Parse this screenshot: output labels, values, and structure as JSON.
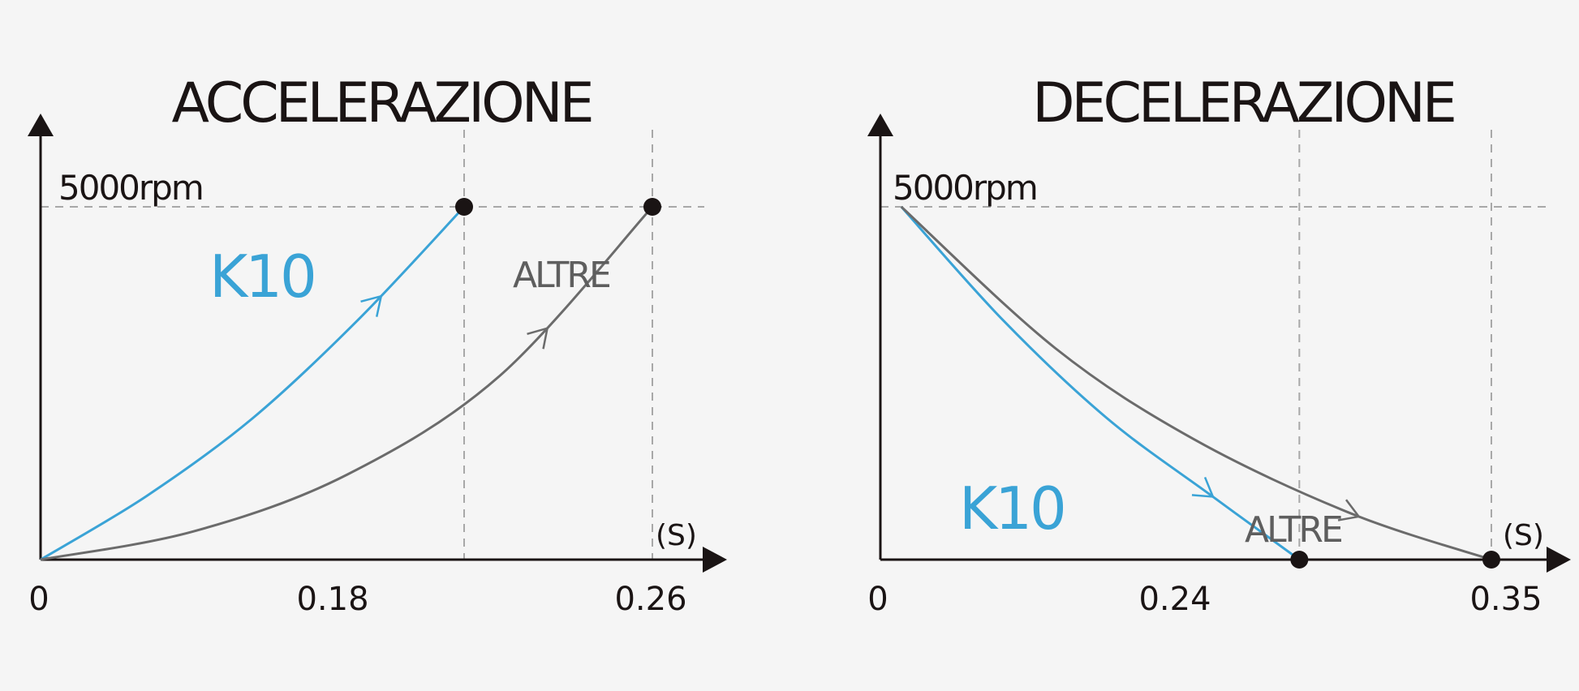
{
  "colors": {
    "background": "#f5f5f5",
    "axis": "#1a1414",
    "k10": "#3aa3d6",
    "altre": "#6b6b6b",
    "grid": "#a8a8a8"
  },
  "chart_data": [
    {
      "type": "line",
      "title": "ACCELERAZIONE",
      "xlabel": "(S)",
      "ylabel": "5000rpm",
      "x_ticks": [
        "0",
        "0.18",
        "0.26"
      ],
      "xlim": [
        0,
        0.26
      ],
      "ylim": [
        0,
        5000
      ],
      "series": [
        {
          "name": "K10",
          "x": [
            0,
            0.045,
            0.09,
            0.135,
            0.18
          ],
          "y": [
            0,
            900,
            2000,
            3400,
            5000
          ]
        },
        {
          "name": "ALTRE",
          "x": [
            0,
            0.065,
            0.13,
            0.195,
            0.26
          ],
          "y": [
            0,
            400,
            1200,
            2600,
            5000
          ]
        }
      ],
      "end_points": [
        {
          "x": 0.18,
          "y": 5000
        },
        {
          "x": 0.26,
          "y": 5000
        }
      ]
    },
    {
      "type": "line",
      "title": "DECELERAZIONE",
      "xlabel": "(S)",
      "ylabel": "5000rpm",
      "x_ticks": [
        "0",
        "0.24",
        "0.35"
      ],
      "xlim": [
        0,
        0.35
      ],
      "ylim": [
        0,
        5000
      ],
      "series": [
        {
          "name": "K10",
          "x": [
            0.012,
            0.07,
            0.13,
            0.19,
            0.24
          ],
          "y": [
            5000,
            3400,
            2000,
            900,
            0
          ]
        },
        {
          "name": "ALTRE",
          "x": [
            0.012,
            0.1,
            0.18,
            0.27,
            0.35
          ],
          "y": [
            5000,
            3000,
            1700,
            650,
            0
          ]
        }
      ],
      "end_points": [
        {
          "x": 0.24,
          "y": 0
        },
        {
          "x": 0.35,
          "y": 0
        }
      ]
    }
  ]
}
